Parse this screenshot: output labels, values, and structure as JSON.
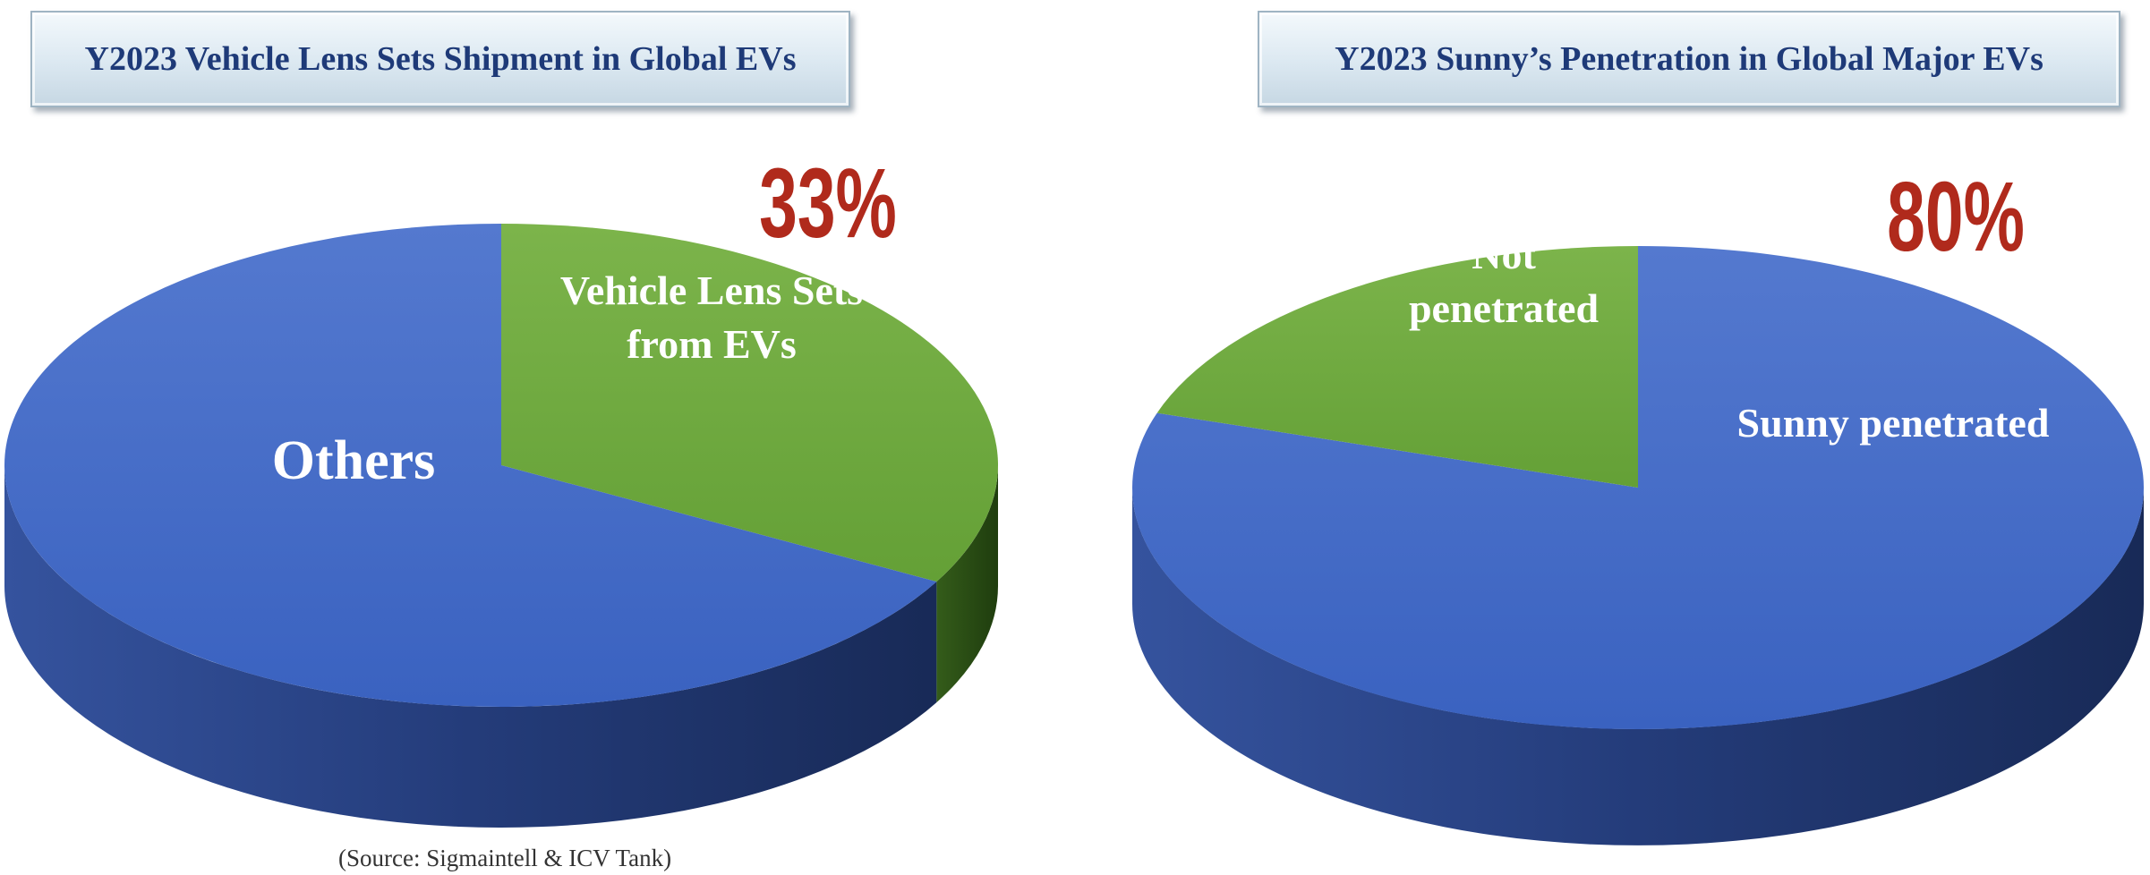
{
  "chart_data": [
    {
      "type": "pie",
      "title": "Y2023 Vehicle Lens Sets Shipment in Global EVs",
      "slices": [
        {
          "label": "Vehicle Lens Sets from EVs",
          "label_lines": [
            "Vehicle Lens Sets",
            "from EVs"
          ],
          "value": 33,
          "color": "#6aa33a"
        },
        {
          "label": "Others",
          "label_lines": [
            "Others"
          ],
          "value": 67,
          "color": "#3d67c4"
        }
      ],
      "highlight_label": "33%"
    },
    {
      "type": "pie",
      "title": "Y2023 Sunny’s Penetration in Global Major EVs",
      "slices": [
        {
          "label": "Sunny penetrated",
          "label_lines": [
            "Sunny penetrated"
          ],
          "value": 80,
          "color": "#3d67c4"
        },
        {
          "label": "Not penetrated",
          "label_lines": [
            "Not",
            "penetrated"
          ],
          "value": 20,
          "color": "#6aa33a"
        }
      ],
      "highlight_label": "80%"
    }
  ],
  "source": "(Source: Sigmaintell & ICV Tank)",
  "colors": {
    "title_text": "#1e3a78",
    "highlight": "#b02a1c",
    "slice_label": "#ffffff"
  }
}
